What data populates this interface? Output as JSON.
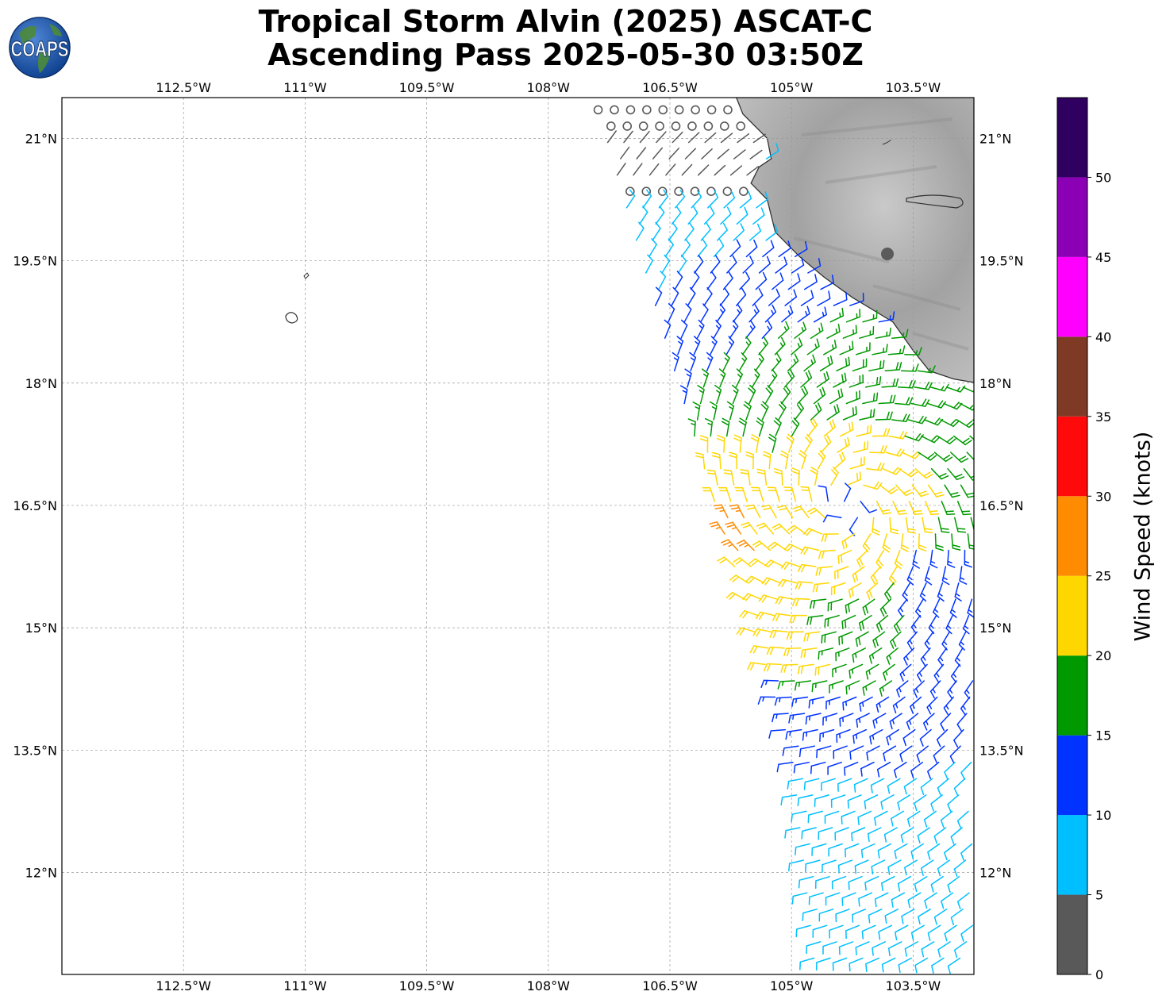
{
  "header": {
    "logo_text": "COAPS",
    "title_line1": "Tropical Storm Alvin (2025) ASCAT-C",
    "title_line2": "Ascending Pass 2025-05-30 03:50Z"
  },
  "map": {
    "lon_range": [
      -114.0,
      -102.75
    ],
    "lat_range": [
      10.75,
      21.5
    ],
    "lon_ticks": [
      {
        "value": -112.5,
        "label": "112.5°W"
      },
      {
        "value": -111.0,
        "label": "111°W"
      },
      {
        "value": -109.5,
        "label": "109.5°W"
      },
      {
        "value": -108.0,
        "label": "108°W"
      },
      {
        "value": -106.5,
        "label": "106.5°W"
      },
      {
        "value": -105.0,
        "label": "105°W"
      },
      {
        "value": -103.5,
        "label": "103.5°W"
      }
    ],
    "lat_ticks": [
      {
        "value": 21.0,
        "label": "21°N"
      },
      {
        "value": 19.5,
        "label": "19.5°N"
      },
      {
        "value": 18.0,
        "label": "18°N"
      },
      {
        "value": 16.5,
        "label": "16.5°N"
      },
      {
        "value": 15.0,
        "label": "15°N"
      },
      {
        "value": 13.5,
        "label": "13.5°N"
      },
      {
        "value": 12.0,
        "label": "12°N"
      }
    ],
    "gridlines": true,
    "land_shading": "grayscale terrain",
    "wind_barbs": {
      "swath_west_edge": [
        [
          -107.4,
          21.4
        ],
        [
          -106.4,
          18.0
        ],
        [
          -105.0,
          13.5
        ],
        [
          -104.7,
          10.75
        ]
      ],
      "speed_zones_kt": [
        {
          "speed": 2,
          "area": "lat > 20.3, near coast"
        },
        {
          "speed": 8,
          "area": "swath edges and north of 18.8N"
        },
        {
          "speed": 13,
          "area": "outer band"
        },
        {
          "speed": 18,
          "area": "band west of center"
        },
        {
          "speed": 23,
          "area": "west edge 15-17N"
        },
        {
          "speed": 27,
          "area": "west edge near 16.3N"
        }
      ]
    }
  },
  "colorbar": {
    "label": "Wind Speed (knots)",
    "ticks": [
      0,
      5,
      10,
      15,
      20,
      25,
      30,
      35,
      40,
      45,
      50
    ],
    "bins": [
      {
        "from": 0,
        "to": 5,
        "color": "#595959"
      },
      {
        "from": 5,
        "to": 10,
        "color": "#00bfff"
      },
      {
        "from": 10,
        "to": 15,
        "color": "#0033ff"
      },
      {
        "from": 15,
        "to": 20,
        "color": "#009900"
      },
      {
        "from": 20,
        "to": 25,
        "color": "#ffd700"
      },
      {
        "from": 25,
        "to": 30,
        "color": "#ff8c00"
      },
      {
        "from": 30,
        "to": 35,
        "color": "#ff0a0a"
      },
      {
        "from": 35,
        "to": 40,
        "color": "#7f3a25"
      },
      {
        "from": 40,
        "to": 45,
        "color": "#ff00ff"
      },
      {
        "from": 45,
        "to": 50,
        "color": "#8b00b5"
      },
      {
        "from": 50,
        "to": 55,
        "color": "#300060"
      }
    ]
  }
}
